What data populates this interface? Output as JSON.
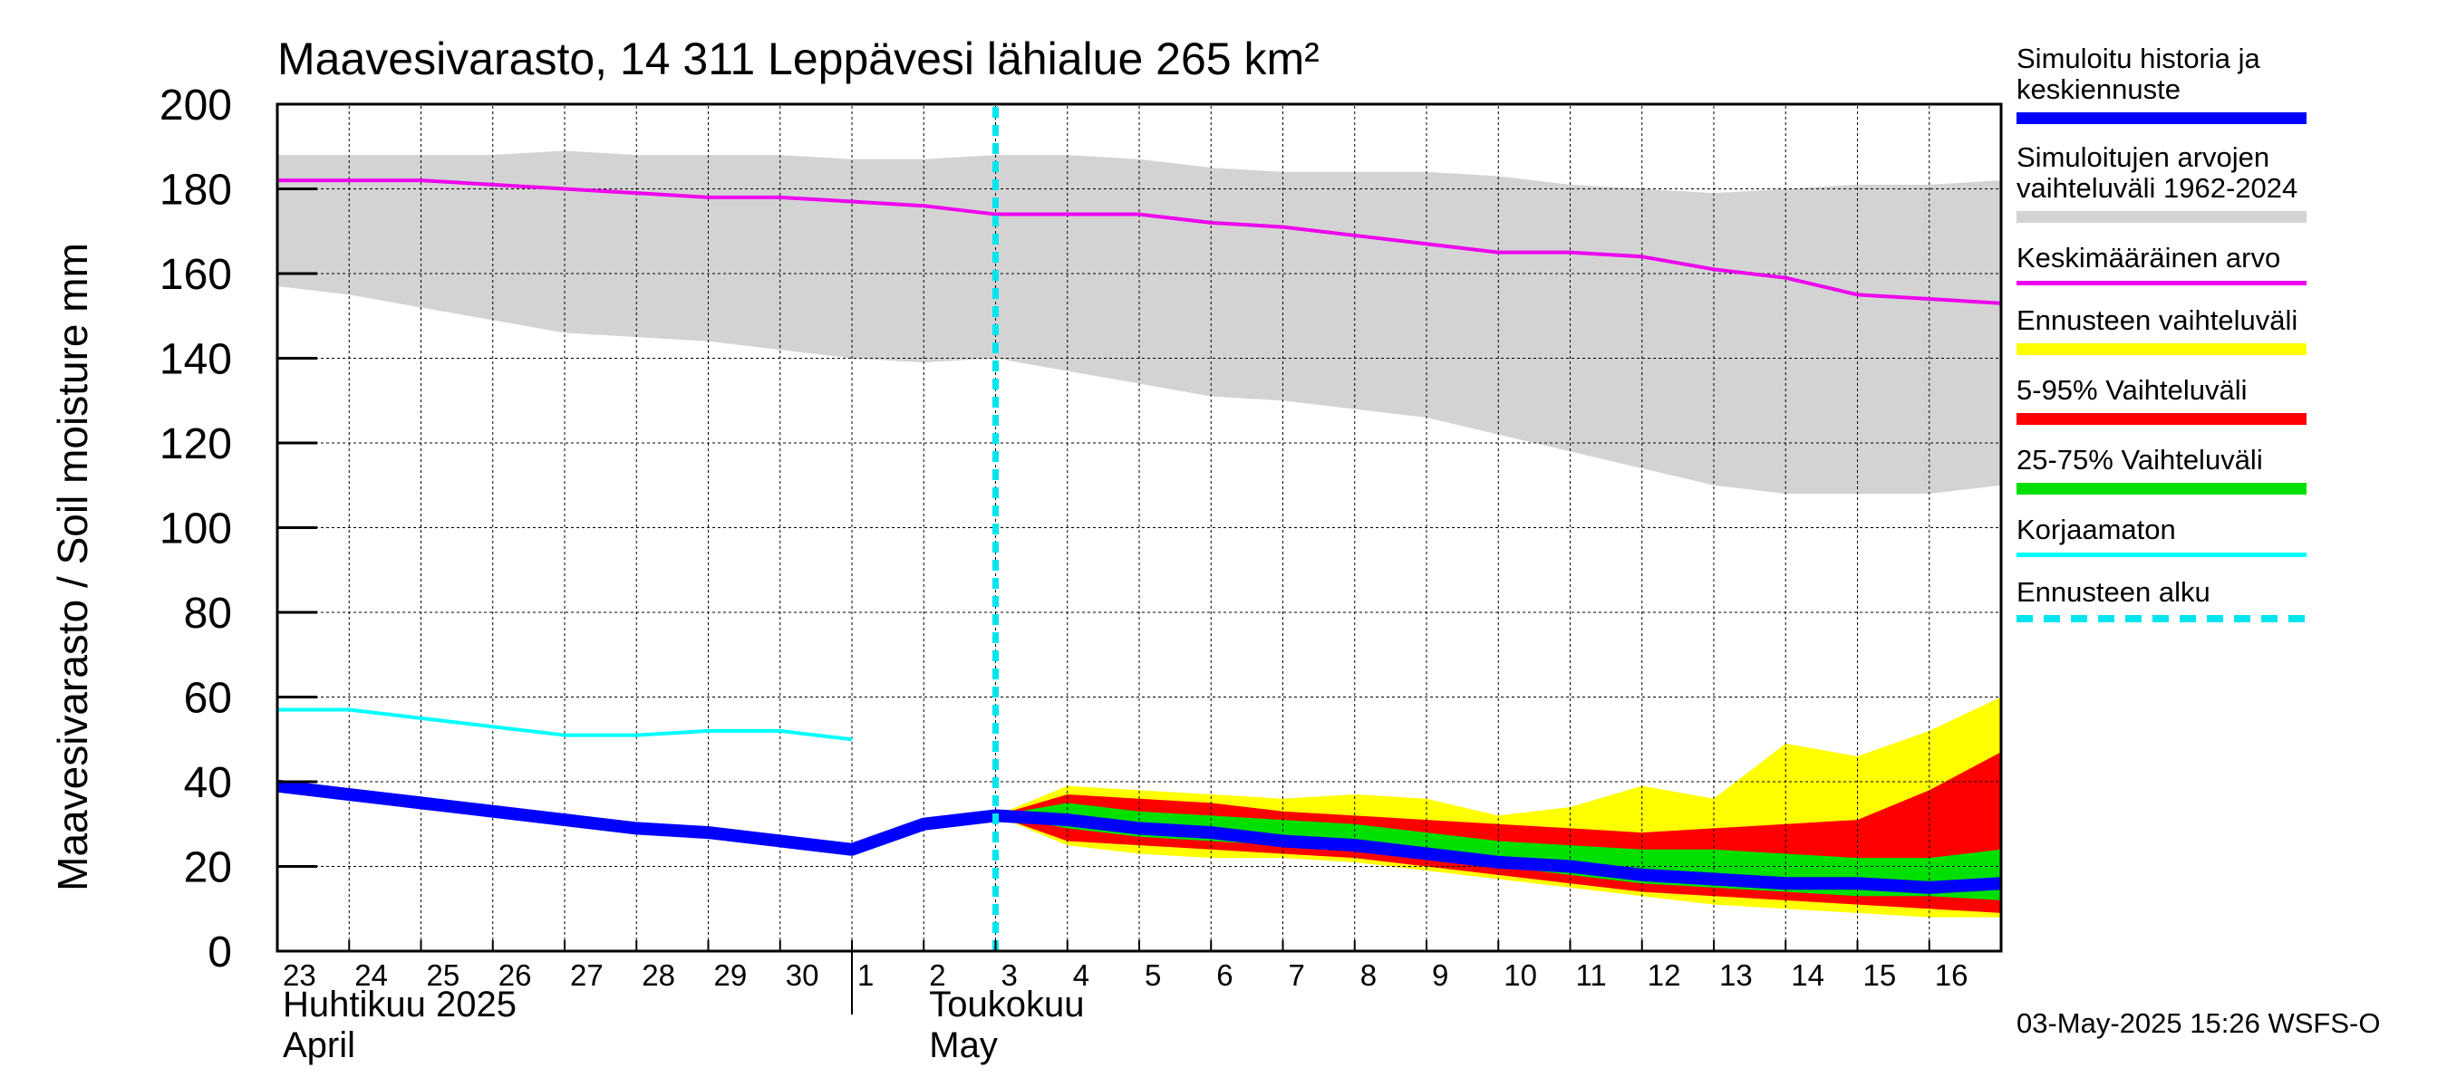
{
  "chart_data": {
    "type": "area",
    "title": "Maavesivarasto, 14 311 Leppävesi lähialue 265 km²",
    "ylabel": "Maavesivarasto / Soil moisture   mm",
    "ylim": [
      0,
      200
    ],
    "yticks": [
      0,
      20,
      40,
      60,
      80,
      100,
      120,
      140,
      160,
      180,
      200
    ],
    "xlim": [
      0,
      24
    ],
    "x_tick_labels": [
      "23",
      "24",
      "25",
      "26",
      "27",
      "28",
      "29",
      "30",
      "1",
      "2",
      "3",
      "4",
      "5",
      "6",
      "7",
      "8",
      "9",
      "10",
      "11",
      "12",
      "13",
      "14",
      "15",
      "16"
    ],
    "month_labels": [
      {
        "line1": "Huhtikuu  2025",
        "line2": "April",
        "x": 0
      },
      {
        "line1": "Toukokuu",
        "line2": "May",
        "x": 9
      }
    ],
    "grid": true,
    "forecast_start_x": 10,
    "series": [
      {
        "name": "Simuloitujen arvojen vaihteluväli 1962-2024",
        "kind": "band",
        "color": "#d3d3d3",
        "x": [
          0,
          1,
          2,
          3,
          4,
          5,
          6,
          7,
          8,
          9,
          10,
          11,
          12,
          13,
          14,
          15,
          16,
          17,
          18,
          19,
          20,
          21,
          22,
          23,
          24
        ],
        "upper": [
          188,
          188,
          188,
          188,
          189,
          188,
          188,
          188,
          187,
          187,
          188,
          188,
          187,
          185,
          184,
          184,
          184,
          183,
          181,
          180,
          179,
          180,
          181,
          181,
          182
        ],
        "lower": [
          157,
          155,
          152,
          149,
          146,
          145,
          144,
          142,
          140,
          139,
          140,
          137,
          134,
          131,
          130,
          128,
          126,
          122,
          118,
          114,
          110,
          108,
          108,
          108,
          110
        ]
      },
      {
        "name": "Ennusteen vaihteluväli",
        "kind": "band",
        "color": "#ffff00",
        "x": [
          10,
          11,
          12,
          13,
          14,
          15,
          16,
          17,
          18,
          19,
          20,
          21,
          22,
          23,
          24
        ],
        "upper": [
          32,
          39,
          38,
          37,
          36,
          37,
          36,
          32,
          34,
          39,
          36,
          49,
          46,
          52,
          60
        ],
        "lower": [
          32,
          25,
          23,
          22,
          22,
          21,
          19,
          17,
          15,
          13,
          11,
          10,
          9,
          8,
          8
        ]
      },
      {
        "name": "5-95% Vaihteluväli",
        "kind": "band",
        "color": "#ff0000",
        "x": [
          10,
          11,
          12,
          13,
          14,
          15,
          16,
          17,
          18,
          19,
          20,
          21,
          22,
          23,
          24
        ],
        "upper": [
          32,
          37,
          36,
          35,
          33,
          32,
          31,
          30,
          29,
          28,
          29,
          30,
          31,
          38,
          47
        ],
        "lower": [
          32,
          26,
          25,
          24,
          23,
          22,
          20,
          18,
          16,
          14,
          13,
          12,
          11,
          10,
          9
        ]
      },
      {
        "name": "25-75% Vaihteluväli",
        "kind": "band",
        "color": "#00e000",
        "x": [
          10,
          11,
          12,
          13,
          14,
          15,
          16,
          17,
          18,
          19,
          20,
          21,
          22,
          23,
          24
        ],
        "upper": [
          32,
          35,
          33,
          32,
          31,
          30,
          28,
          26,
          25,
          24,
          24,
          23,
          22,
          22,
          24
        ],
        "lower": [
          32,
          29,
          27,
          26,
          25,
          24,
          22,
          20,
          18,
          16,
          15,
          14,
          13,
          13,
          12
        ]
      },
      {
        "name": "Keskimääräinen arvo",
        "kind": "line",
        "color": "#ee00ee",
        "width": 4,
        "x": [
          0,
          1,
          2,
          3,
          4,
          5,
          6,
          7,
          8,
          9,
          10,
          11,
          12,
          13,
          14,
          15,
          16,
          17,
          18,
          19,
          20,
          21,
          22,
          23,
          24
        ],
        "values": [
          182,
          182,
          182,
          181,
          180,
          179,
          178,
          178,
          177,
          176,
          174,
          174,
          174,
          172,
          171,
          169,
          167,
          165,
          165,
          164,
          161,
          159,
          155,
          154,
          153
        ]
      },
      {
        "name": "Korjaamaton",
        "kind": "line",
        "color": "#00ffff",
        "width": 4,
        "x": [
          0,
          1,
          2,
          3,
          4,
          5,
          6,
          7,
          8
        ],
        "values": [
          57,
          57,
          55,
          53,
          51,
          51,
          52,
          52,
          50
        ]
      },
      {
        "name": "Simuloitu historia ja keskiennuste",
        "kind": "line",
        "color": "#0000ff",
        "width": 14,
        "x": [
          0,
          1,
          2,
          3,
          4,
          5,
          6,
          7,
          8,
          9,
          10,
          11,
          12,
          13,
          14,
          15,
          16,
          17,
          18,
          19,
          20,
          21,
          22,
          23,
          24
        ],
        "values": [
          39,
          37,
          35,
          33,
          31,
          29,
          28,
          26,
          24,
          30,
          32,
          31,
          29,
          28,
          26,
          25,
          23,
          21,
          20,
          18,
          17,
          16,
          16,
          15,
          16
        ]
      }
    ]
  },
  "legend": {
    "items": [
      {
        "label": "Simuloitu historia ja\nkeskiennuste",
        "color": "#0000ff",
        "style": "thick"
      },
      {
        "label": "Simuloitujen arvojen\nvaihteluväli 1962-2024",
        "color": "#d3d3d3",
        "style": "thick"
      },
      {
        "label": "Keskimääräinen arvo",
        "color": "#ee00ee",
        "style": "thin"
      },
      {
        "label": "Ennusteen vaihteluväli",
        "color": "#ffff00",
        "style": "thick"
      },
      {
        "label": "5-95% Vaihteluväli",
        "color": "#ff0000",
        "style": "thick"
      },
      {
        "label": "25-75% Vaihteluväli",
        "color": "#00e000",
        "style": "thick"
      },
      {
        "label": "Korjaamaton",
        "color": "#00ffff",
        "style": "thin"
      },
      {
        "label": "Ennusteen alku",
        "color": "#00e5ee",
        "style": "dashed"
      }
    ]
  },
  "footer": "03-May-2025 15:26 WSFS-O"
}
